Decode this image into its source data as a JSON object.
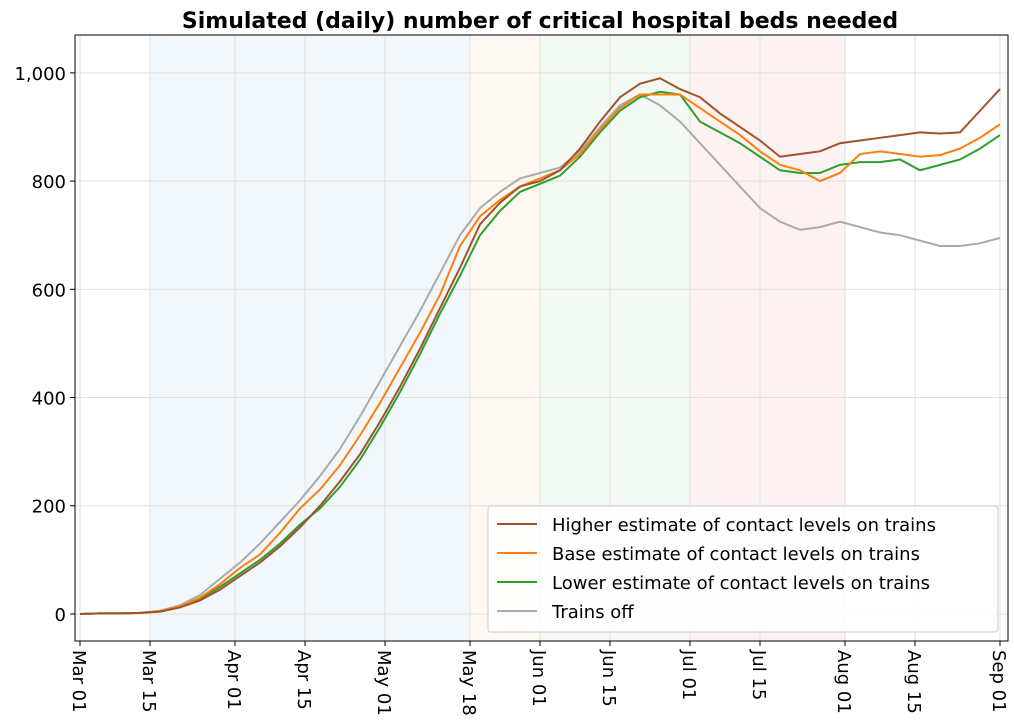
{
  "chart_data": {
    "type": "line",
    "title": "Simulated (daily) number of critical hospital beds needed",
    "x": [
      0,
      4,
      8,
      12,
      16,
      20,
      24,
      28,
      32,
      36,
      40,
      44,
      48,
      52,
      56,
      60,
      64,
      68,
      72,
      76,
      80,
      84,
      88,
      92,
      96,
      100,
      104,
      108,
      112,
      116,
      120,
      124,
      128,
      132,
      136,
      140,
      144,
      148,
      152,
      156,
      160,
      164,
      168,
      172,
      176,
      180,
      184
    ],
    "series": [
      {
        "name": "Higher estimate of contact levels on trains",
        "color": "#a0522d",
        "values": [
          0,
          1,
          1,
          2,
          4,
          12,
          25,
          45,
          70,
          95,
          125,
          160,
          200,
          245,
          295,
          355,
          420,
          490,
          565,
          640,
          720,
          760,
          790,
          800,
          820,
          860,
          910,
          955,
          980,
          990,
          970,
          955,
          925,
          900,
          875,
          845,
          850,
          855,
          870,
          875,
          880,
          885,
          890,
          888,
          890,
          930,
          970
        ]
      },
      {
        "name": "Base estimate of contact levels on trains",
        "color": "#ff7f0e",
        "values": [
          0,
          1,
          1,
          2,
          5,
          14,
          30,
          55,
          85,
          110,
          150,
          195,
          230,
          275,
          330,
          390,
          455,
          520,
          590,
          680,
          735,
          765,
          790,
          805,
          820,
          850,
          895,
          935,
          960,
          960,
          960,
          935,
          910,
          885,
          855,
          830,
          820,
          800,
          815,
          850,
          855,
          850,
          845,
          848,
          860,
          880,
          905
        ]
      },
      {
        "name": "Lower estimate of contact levels on trains",
        "color": "#2ca02c",
        "values": [
          0,
          1,
          1,
          2,
          5,
          13,
          28,
          50,
          75,
          100,
          130,
          165,
          195,
          235,
          285,
          345,
          410,
          480,
          555,
          625,
          700,
          745,
          780,
          795,
          810,
          845,
          890,
          930,
          955,
          965,
          960,
          910,
          890,
          870,
          845,
          820,
          815,
          815,
          830,
          835,
          835,
          840,
          820,
          830,
          840,
          860,
          885
        ]
      },
      {
        "name": "Trains off",
        "color": "#aaaaaa",
        "values": [
          0,
          1,
          1,
          2,
          6,
          16,
          35,
          65,
          95,
          130,
          170,
          210,
          255,
          305,
          365,
          430,
          495,
          560,
          630,
          700,
          750,
          780,
          805,
          815,
          825,
          855,
          900,
          940,
          960,
          940,
          910,
          870,
          830,
          790,
          750,
          725,
          710,
          715,
          725,
          715,
          705,
          700,
          690,
          680,
          680,
          685,
          695
        ]
      }
    ],
    "xlim": [
      -1,
      185.6
    ],
    "xticks": [
      {
        "value": 0,
        "label": "Mar 01"
      },
      {
        "value": 14,
        "label": "Mar 15"
      },
      {
        "value": 31,
        "label": "Apr 01"
      },
      {
        "value": 45,
        "label": "Apr 15"
      },
      {
        "value": 61,
        "label": "May 01"
      },
      {
        "value": 78,
        "label": "May 18"
      },
      {
        "value": 92,
        "label": "Jun 01"
      },
      {
        "value": 106,
        "label": "Jun 15"
      },
      {
        "value": 122,
        "label": "Jul 01"
      },
      {
        "value": 136,
        "label": "Jul 15"
      },
      {
        "value": 153,
        "label": "Aug 01"
      },
      {
        "value": 167,
        "label": "Aug 15"
      },
      {
        "value": 184,
        "label": "Sep 01"
      }
    ],
    "ylim": [
      -50,
      1070
    ],
    "yticks": [
      0,
      200,
      400,
      600,
      800,
      {
        "value": 1000,
        "label": "1,000"
      }
    ],
    "grid": true,
    "legend": "lower right",
    "spans": [
      {
        "start": 14,
        "end": 78,
        "color": "#1f77b4"
      },
      {
        "start": 78,
        "end": 92,
        "color": "#ff7f0e"
      },
      {
        "start": 92,
        "end": 122,
        "color": "#2ca02c"
      },
      {
        "start": 122,
        "end": 153,
        "color": "#d62728"
      }
    ]
  }
}
